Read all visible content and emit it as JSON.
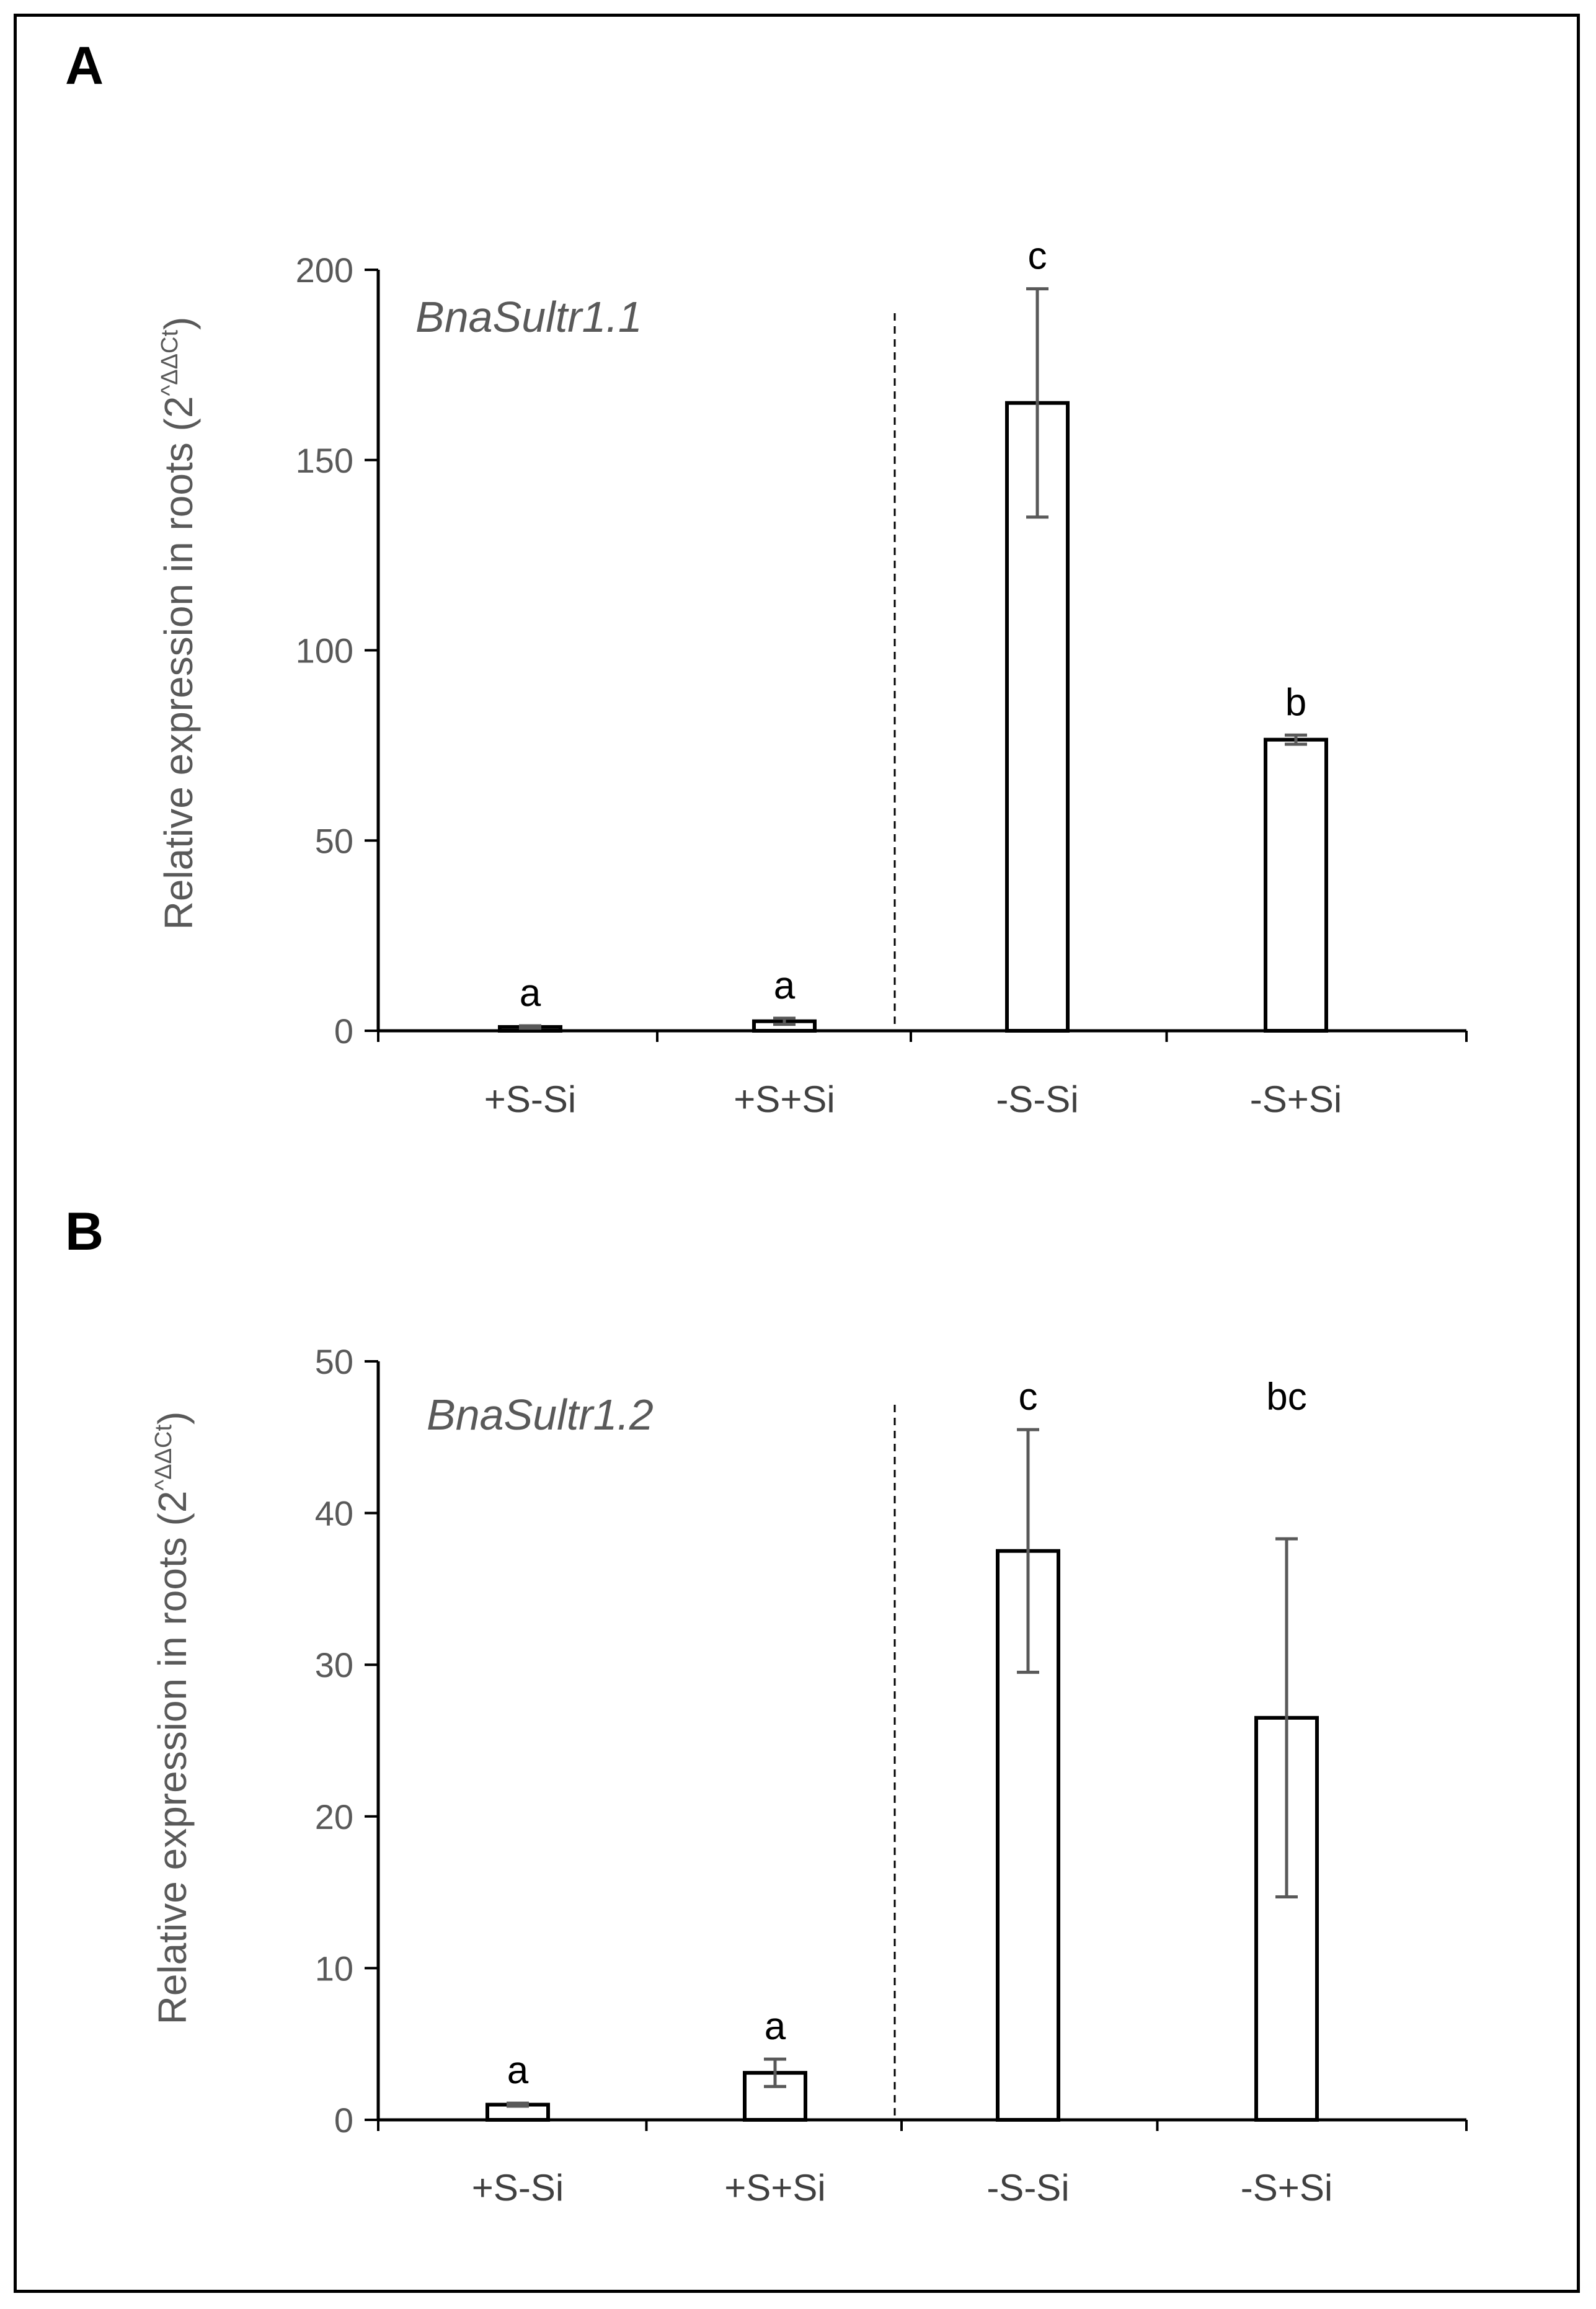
{
  "chart_data": [
    {
      "type": "bar",
      "panel": "A",
      "gene_label": "BnaSultr1.1",
      "ylabel": "Relative expression in roots (2^ΔΔCt)",
      "ylabel_text": "Relative expression in roots (2",
      "ylabel_exp": "^ΔΔCt",
      "ylabel_end": ")",
      "xlabel": "",
      "ylim": [
        0,
        200
      ],
      "yticks": [
        0,
        50,
        100,
        150,
        200
      ],
      "categories": [
        "+S-Si",
        "+S+Si",
        "-S-Si",
        "-S+Si"
      ],
      "values": [
        1,
        2.5,
        165,
        76.5
      ],
      "errors": [
        0.3,
        0.8,
        30,
        1.2
      ],
      "significance": [
        "a",
        "a",
        "c",
        "b"
      ],
      "divider_after_index": 1
    },
    {
      "type": "bar",
      "panel": "B",
      "gene_label": "BnaSultr1.2",
      "ylabel": "Relative expression in roots (2^ΔΔCt)",
      "ylabel_text": "Relative expression in roots (2",
      "ylabel_exp": "^ΔΔCt",
      "ylabel_end": ")",
      "xlabel": "",
      "ylim": [
        0,
        50
      ],
      "yticks": [
        0,
        10,
        20,
        30,
        40,
        50
      ],
      "categories": [
        "+S-Si",
        "+S+Si",
        "-S-Si",
        "-S+Si"
      ],
      "values": [
        1,
        3.1,
        37.5,
        26.5
      ],
      "errors": [
        0.1,
        0.9,
        8,
        11.8
      ],
      "significance": [
        "a",
        "a",
        "c",
        "bc"
      ],
      "divider_after_index": 1
    }
  ],
  "colors": {
    "bar_fill": "#ffffff",
    "bar_stroke": "#000000",
    "error_bar": "#595959",
    "axis": "#000000",
    "divider": "#000000"
  }
}
